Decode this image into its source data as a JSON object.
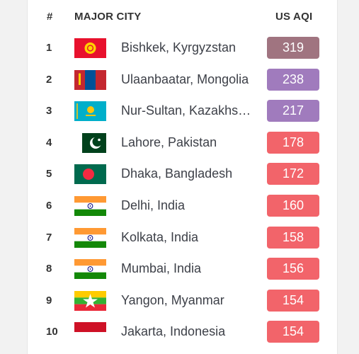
{
  "table": {
    "header_rank": "#",
    "header_city": "MAJOR CITY",
    "header_aqi": "US AQI"
  },
  "colors": {
    "hazardous": "#a07480",
    "very_unhealthy": "#a07bbd",
    "unhealthy": "#f2646a"
  },
  "rows": [
    {
      "rank": "1",
      "city": "Bishkek, Kyrgyzstan",
      "aqi": "319",
      "flag": "kyrgyzstan-flag",
      "level": "hazardous"
    },
    {
      "rank": "2",
      "city": "Ulaanbaatar, Mongolia",
      "aqi": "238",
      "flag": "mongolia-flag",
      "level": "very_unhealthy"
    },
    {
      "rank": "3",
      "city": "Nur-Sultan, Kazakhst…",
      "aqi": "217",
      "flag": "kazakhstan-flag",
      "level": "very_unhealthy"
    },
    {
      "rank": "4",
      "city": "Lahore, Pakistan",
      "aqi": "178",
      "flag": "pakistan-flag",
      "level": "unhealthy"
    },
    {
      "rank": "5",
      "city": "Dhaka, Bangladesh",
      "aqi": "172",
      "flag": "bangladesh-flag",
      "level": "unhealthy"
    },
    {
      "rank": "6",
      "city": "Delhi, India",
      "aqi": "160",
      "flag": "india-flag",
      "level": "unhealthy"
    },
    {
      "rank": "7",
      "city": "Kolkata, India",
      "aqi": "158",
      "flag": "india-flag",
      "level": "unhealthy"
    },
    {
      "rank": "8",
      "city": "Mumbai, India",
      "aqi": "156",
      "flag": "india-flag",
      "level": "unhealthy"
    },
    {
      "rank": "9",
      "city": "Yangon, Myanmar",
      "aqi": "154",
      "flag": "myanmar-flag",
      "level": "unhealthy"
    },
    {
      "rank": "10",
      "city": "Jakarta, Indonesia",
      "aqi": "154",
      "flag": "indonesia-flag",
      "level": "unhealthy"
    }
  ]
}
